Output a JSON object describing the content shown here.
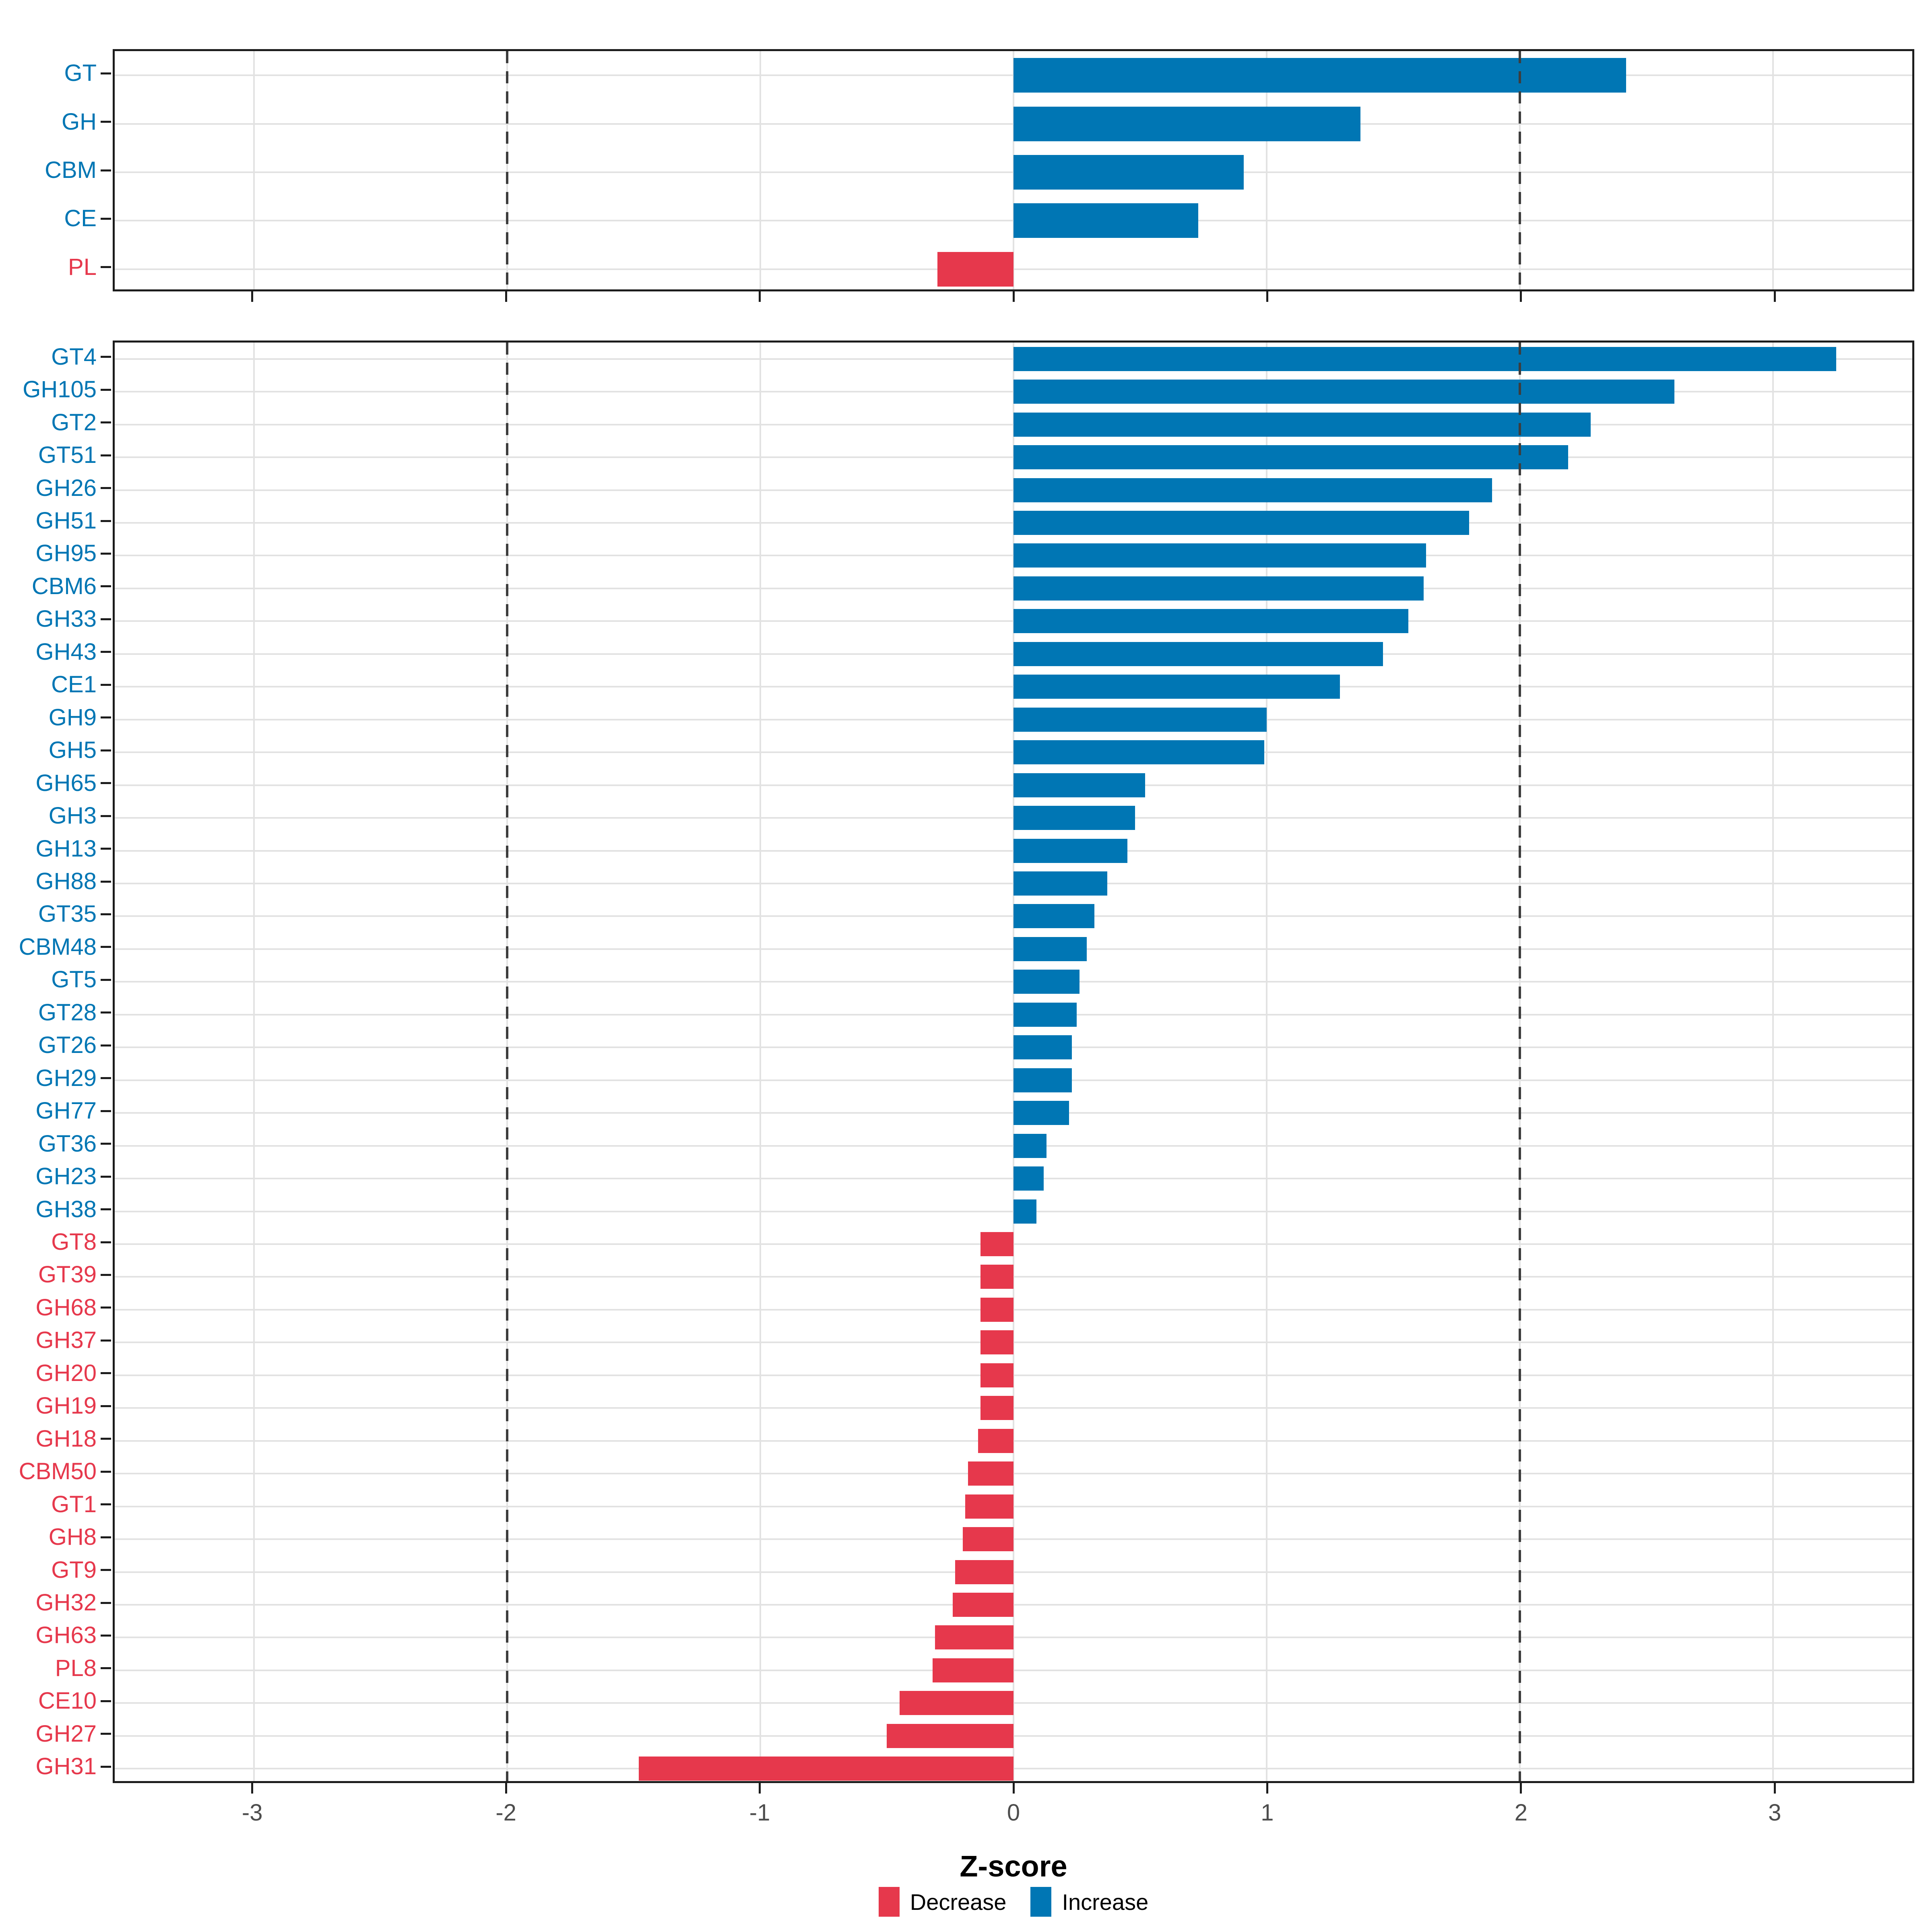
{
  "figure": {
    "background": "#ffffff",
    "x_axis_title": "Z-score"
  },
  "colors": {
    "increase": "#0076B4",
    "decrease": "#E6384C",
    "grid": "#e2e2e2",
    "panel_border": "#1c1c1c",
    "dashed_reference": "#3d3d3d",
    "tick_label": "#4d4d4d"
  },
  "legend": {
    "items": [
      {
        "label": "Decrease",
        "color": "#E6384C"
      },
      {
        "label": "Increase",
        "color": "#0076B4"
      }
    ]
  },
  "chart_data": [
    {
      "type": "bar",
      "orientation": "horizontal",
      "title": "",
      "xlabel": "",
      "ylabel": "",
      "categories": [
        "GT",
        "GH",
        "CBM",
        "CE",
        "PL"
      ],
      "values": [
        2.42,
        1.37,
        0.91,
        0.73,
        -0.3
      ],
      "xlim": [
        -3.55,
        3.55
      ],
      "xticks": [
        -3,
        -2,
        -1,
        0,
        1,
        2,
        3
      ],
      "show_x_tick_labels": false,
      "reference_lines": [
        -2,
        2
      ],
      "grid": true,
      "legend_position": "none"
    },
    {
      "type": "bar",
      "orientation": "horizontal",
      "title": "",
      "xlabel": "Z-score",
      "ylabel": "",
      "categories": [
        "GT4",
        "GH105",
        "GT2",
        "GT51",
        "GH26",
        "GH51",
        "GH95",
        "CBM6",
        "GH33",
        "GH43",
        "CE1",
        "GH9",
        "GH5",
        "GH65",
        "GH3",
        "GH13",
        "GH88",
        "GT35",
        "CBM48",
        "GT5",
        "GT28",
        "GT26",
        "GH29",
        "GH77",
        "GT36",
        "GH23",
        "GH38",
        "GT8",
        "GT39",
        "GH68",
        "GH37",
        "GH20",
        "GH19",
        "GH18",
        "CBM50",
        "GT1",
        "GH8",
        "GT9",
        "GH32",
        "GH63",
        "PL8",
        "CE10",
        "GH27",
        "GH31"
      ],
      "values": [
        3.25,
        2.61,
        2.28,
        2.19,
        1.89,
        1.8,
        1.63,
        1.62,
        1.56,
        1.46,
        1.29,
        1.0,
        0.99,
        0.52,
        0.48,
        0.45,
        0.37,
        0.32,
        0.29,
        0.26,
        0.25,
        0.23,
        0.23,
        0.22,
        0.13,
        0.12,
        0.09,
        -0.13,
        -0.13,
        -0.13,
        -0.13,
        -0.13,
        -0.13,
        -0.14,
        -0.18,
        -0.19,
        -0.2,
        -0.23,
        -0.24,
        -0.31,
        -0.32,
        -0.45,
        -0.5,
        -1.48
      ],
      "xlim": [
        -3.55,
        3.55
      ],
      "xticks": [
        -3,
        -2,
        -1,
        0,
        1,
        2,
        3
      ],
      "show_x_tick_labels": true,
      "reference_lines": [
        -2,
        2
      ],
      "grid": true,
      "legend_position": "bottom"
    }
  ]
}
